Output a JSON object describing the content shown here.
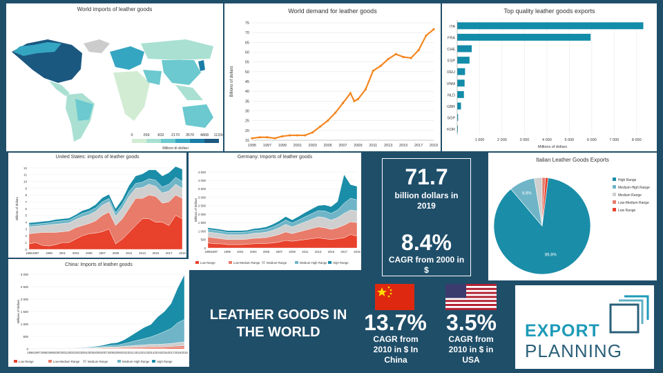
{
  "panels": {
    "map": {
      "title": "World imports of leather goods",
      "legend_ticks": [
        "0",
        "269",
        "832",
        "2170",
        "3570",
        "4868",
        "11334"
      ],
      "legend_colors": [
        "#d2ecd3",
        "#a9e0d2",
        "#6bc9cf",
        "#35a6c2",
        "#1a7da7",
        "#1b5880"
      ],
      "legend_label": "Milioni di dollari"
    },
    "logo": {
      "line1": "EXPORT",
      "line2": "PLANNING"
    }
  },
  "stats": {
    "world_value": "71.7",
    "world_label": "billion dollars in 2019",
    "world_cagr": "8.4%",
    "world_cagr_label": "CAGR from 2000 in $",
    "china_cagr": "13.7%",
    "china_label": "CAGR from 2010 in $ In China",
    "usa_cagr": "3.5%",
    "usa_label": "CAGR from 2010 in $ in USA",
    "headline": "LEATHER GOODS IN THE WORLD"
  },
  "chart_data": [
    {
      "id": "demand",
      "type": "line",
      "title": "World demand for leather goods",
      "ylabel": "Billions of dollars",
      "ylim": [
        15,
        75
      ],
      "yticks": [
        15,
        20,
        25,
        30,
        35,
        40,
        45,
        50,
        55,
        60,
        65,
        70,
        75
      ],
      "xlim": [
        1995,
        2019
      ],
      "xticks": [
        1995,
        1997,
        1999,
        2001,
        2003,
        2005,
        2007,
        2009,
        2011,
        2013,
        2015,
        2017,
        2019
      ],
      "color": "#f4861f",
      "x": [
        1995,
        1996,
        1997,
        1998,
        1999,
        2000,
        2001,
        2002,
        2003,
        2004,
        2005,
        2006,
        2007,
        2008,
        2008.5,
        2009,
        2010,
        2011,
        2012,
        2013,
        2014,
        2015,
        2016,
        2017,
        2018,
        2019
      ],
      "y": [
        16,
        16.5,
        16.5,
        16,
        17,
        17.5,
        17.5,
        17.5,
        19,
        22,
        25,
        29,
        34,
        39,
        35,
        36,
        41,
        50.5,
        53,
        56.5,
        59,
        57.5,
        57,
        61,
        68.5,
        71.7
      ]
    },
    {
      "id": "top-exports",
      "type": "bar",
      "orientation": "horizontal",
      "title": "Top quality leather goods exports",
      "xlabel": "Millions of dollars",
      "categories": [
        "ITA",
        "FRA",
        "CHE",
        "ESP",
        "DEU",
        "VNM",
        "NLD",
        "GBR",
        "SGP",
        "KOR"
      ],
      "values": [
        8300,
        5950,
        650,
        550,
        350,
        330,
        300,
        170,
        40,
        25
      ],
      "xlim": [
        0,
        8500
      ],
      "xticks": [
        1000,
        2000,
        3000,
        4000,
        5000,
        6000,
        7000,
        8000
      ],
      "xtick_labels": [
        "1 000",
        "2 000",
        "3 000",
        "4 000",
        "5 000",
        "6 000",
        "7 000",
        "8 000"
      ],
      "color": "#138ca9"
    },
    {
      "id": "us",
      "type": "area",
      "title": "United States: imports of leather goods",
      "ylabel": "Billions of dollars",
      "ylim": [
        0,
        12
      ],
      "yticks": [
        0,
        1,
        2,
        3,
        4,
        5,
        6,
        7,
        8,
        9,
        10,
        11,
        12
      ],
      "x": [
        1996,
        1997,
        1998,
        1999,
        2000,
        2001,
        2002,
        2003,
        2004,
        2005,
        2006,
        2007,
        2008,
        2009,
        2010,
        2011,
        2012,
        2013,
        2014,
        2015,
        2016,
        2017,
        2018,
        2019
      ],
      "xticks": [
        1996,
        1997,
        1999,
        2001,
        2003,
        2005,
        2007,
        2009,
        2011,
        2013,
        2015,
        2017,
        2019
      ],
      "series": [
        {
          "name": "Low Range",
          "color": "#e8412c",
          "values": [
            0.8,
            1.0,
            0.6,
            0.5,
            0.7,
            1.0,
            1.0,
            1.5,
            2.0,
            2.3,
            2.4,
            2.6,
            3.0,
            0.8,
            1.5,
            2.5,
            3.5,
            4.5,
            4.5,
            4.0,
            4.0,
            3.5,
            5.0,
            4.5
          ]
        },
        {
          "name": "Low-Medium Range",
          "color": "#e87b6a",
          "values": [
            1.5,
            1.4,
            1.9,
            2.0,
            1.8,
            1.6,
            1.7,
            1.7,
            1.5,
            1.5,
            1.8,
            2.4,
            2.5,
            2.7,
            3.0,
            3.5,
            4.0,
            3.0,
            3.5,
            3.8,
            2.8,
            3.5,
            3.0,
            3.0
          ]
        },
        {
          "name": "Medium Range",
          "color": "#cfcfcf",
          "values": [
            1.0,
            1.0,
            1.0,
            1.1,
            1.2,
            1.2,
            1.2,
            1.2,
            1.3,
            1.3,
            1.4,
            1.5,
            1.5,
            1.4,
            1.6,
            1.8,
            1.5,
            1.6,
            1.6,
            1.5,
            1.5,
            1.6,
            1.6,
            1.5
          ]
        },
        {
          "name": "Medium-High Range",
          "color": "#6fb5c7",
          "values": [
            0.3,
            0.3,
            0.3,
            0.3,
            0.4,
            0.4,
            0.4,
            0.4,
            0.5,
            0.5,
            0.5,
            0.5,
            0.5,
            0.5,
            0.6,
            0.7,
            0.7,
            0.8,
            0.8,
            0.9,
            0.9,
            1.0,
            1.0,
            1.0
          ]
        },
        {
          "name": "High Range",
          "color": "#1a8da8",
          "values": [
            0.3,
            0.3,
            0.3,
            0.3,
            0.3,
            0.3,
            0.3,
            0.3,
            0.4,
            0.4,
            0.5,
            0.6,
            0.6,
            0.6,
            0.7,
            0.9,
            1.1,
            1.2,
            1.3,
            1.5,
            1.6,
            1.7,
            1.6,
            1.8
          ]
        }
      ]
    },
    {
      "id": "germany",
      "type": "area",
      "title": "Germany: Imports of leather goods",
      "ylabel": "Millions of dollars",
      "ylim": [
        0,
        4500
      ],
      "yticks": [
        0,
        500,
        1000,
        1500,
        2000,
        2500,
        3000,
        3500,
        4000,
        4500
      ],
      "ytick_labels": [
        "0",
        "500",
        "1 000",
        "1 500",
        "2 000",
        "2 500",
        "3 000",
        "3 500",
        "4 000",
        "4 500"
      ],
      "x": [
        1996,
        1997,
        1998,
        1999,
        2000,
        2001,
        2002,
        2003,
        2004,
        2005,
        2006,
        2007,
        2008,
        2009,
        2010,
        2011,
        2012,
        2013,
        2014,
        2015,
        2016,
        2017,
        2018,
        2019
      ],
      "xticks": [
        1996,
        1997,
        1999,
        2001,
        2003,
        2005,
        2007,
        2009,
        2011,
        2013,
        2015,
        2017,
        2019
      ],
      "series": [
        {
          "name": "Low Range",
          "color": "#e8412c",
          "values": [
            300,
            250,
            250,
            200,
            200,
            200,
            220,
            250,
            260,
            270,
            300,
            350,
            450,
            400,
            450,
            500,
            550,
            600,
            550,
            500,
            550,
            600,
            800,
            700
          ]
        },
        {
          "name": "Low-Medium Range",
          "color": "#e87b6a",
          "values": [
            350,
            350,
            300,
            300,
            300,
            300,
            300,
            320,
            330,
            350,
            400,
            450,
            500,
            450,
            500,
            550,
            600,
            650,
            650,
            600,
            650,
            750,
            750,
            800
          ]
        },
        {
          "name": "Medium Range",
          "color": "#cfcfcf",
          "values": [
            300,
            300,
            300,
            280,
            280,
            280,
            280,
            300,
            300,
            320,
            350,
            400,
            450,
            400,
            450,
            500,
            550,
            600,
            600,
            550,
            600,
            700,
            700,
            700
          ]
        },
        {
          "name": "Medium-High Range",
          "color": "#6fb5c7",
          "values": [
            150,
            150,
            150,
            150,
            150,
            150,
            150,
            160,
            170,
            180,
            200,
            230,
            260,
            230,
            260,
            300,
            330,
            360,
            400,
            400,
            450,
            600,
            700,
            650
          ]
        },
        {
          "name": "High Range",
          "color": "#1a8da8",
          "values": [
            100,
            100,
            100,
            100,
            100,
            100,
            100,
            110,
            120,
            130,
            150,
            170,
            200,
            180,
            210,
            250,
            280,
            300,
            350,
            400,
            500,
            1700,
            800,
            800
          ]
        }
      ]
    },
    {
      "id": "china",
      "type": "area",
      "title": "China: Imports of leather goods",
      "ylabel": "Millions of dollars",
      "ylim": [
        0,
        3000
      ],
      "yticks": [
        0,
        500,
        1000,
        1500,
        2000,
        2500,
        3000
      ],
      "ytick_labels": [
        "0",
        "500",
        "1 000",
        "1 500",
        "2 000",
        "2 500",
        "3 000"
      ],
      "x": [
        1996,
        1997,
        1998,
        1999,
        2000,
        2001,
        2002,
        2003,
        2004,
        2005,
        2006,
        2007,
        2008,
        2009,
        2010,
        2011,
        2012,
        2013,
        2014,
        2015,
        2016,
        2017,
        2018,
        2019
      ],
      "xticks": [
        1996,
        1997,
        1998,
        1999,
        2000,
        2001,
        2002,
        2003,
        2004,
        2005,
        2006,
        2007,
        2008,
        2009,
        2010,
        2011,
        2012,
        2013,
        2014,
        2015,
        2016,
        2017,
        2018,
        2019
      ],
      "series": [
        {
          "name": "Low Range",
          "color": "#e8412c",
          "values": [
            10,
            10,
            10,
            10,
            10,
            10,
            10,
            10,
            10,
            10,
            10,
            15,
            15,
            15,
            20,
            20,
            25,
            25,
            30,
            30,
            30,
            35,
            40,
            40
          ]
        },
        {
          "name": "Low-Medium Range",
          "color": "#e87b6a",
          "values": [
            10,
            10,
            10,
            10,
            10,
            10,
            10,
            10,
            10,
            15,
            15,
            20,
            25,
            25,
            30,
            35,
            40,
            45,
            50,
            50,
            55,
            60,
            70,
            80
          ]
        },
        {
          "name": "Medium Range",
          "color": "#cfcfcf",
          "values": [
            5,
            5,
            5,
            5,
            5,
            5,
            5,
            10,
            10,
            15,
            20,
            30,
            40,
            40,
            60,
            70,
            80,
            90,
            100,
            100,
            110,
            120,
            140,
            160
          ]
        },
        {
          "name": "Medium-High Range",
          "color": "#6fb5c7",
          "values": [
            5,
            5,
            5,
            5,
            5,
            5,
            5,
            10,
            10,
            20,
            30,
            40,
            60,
            70,
            100,
            150,
            200,
            250,
            300,
            400,
            500,
            600,
            800,
            900
          ]
        },
        {
          "name": "High Range",
          "color": "#1a8da8",
          "values": [
            5,
            5,
            5,
            5,
            5,
            5,
            5,
            10,
            15,
            20,
            30,
            50,
            80,
            100,
            150,
            250,
            350,
            450,
            500,
            700,
            800,
            1000,
            1400,
            1800
          ]
        }
      ]
    },
    {
      "id": "italian-pie",
      "type": "pie",
      "title": "Italian Leather Goods Exports",
      "labels": [
        "High Range",
        "Medium-High Range",
        "Medium Range",
        "Low-Medium Range",
        "Low Range"
      ],
      "values": [
        86.8,
        8.6,
        2.6,
        1.1,
        0.9
      ],
      "data_labels": [
        "86.8%",
        "8.6%",
        "",
        "",
        ""
      ],
      "colors": [
        "#1a8da8",
        "#6fb5c7",
        "#cfcfcf",
        "#e87b6a",
        "#e8412c"
      ],
      "legend": "right"
    }
  ]
}
